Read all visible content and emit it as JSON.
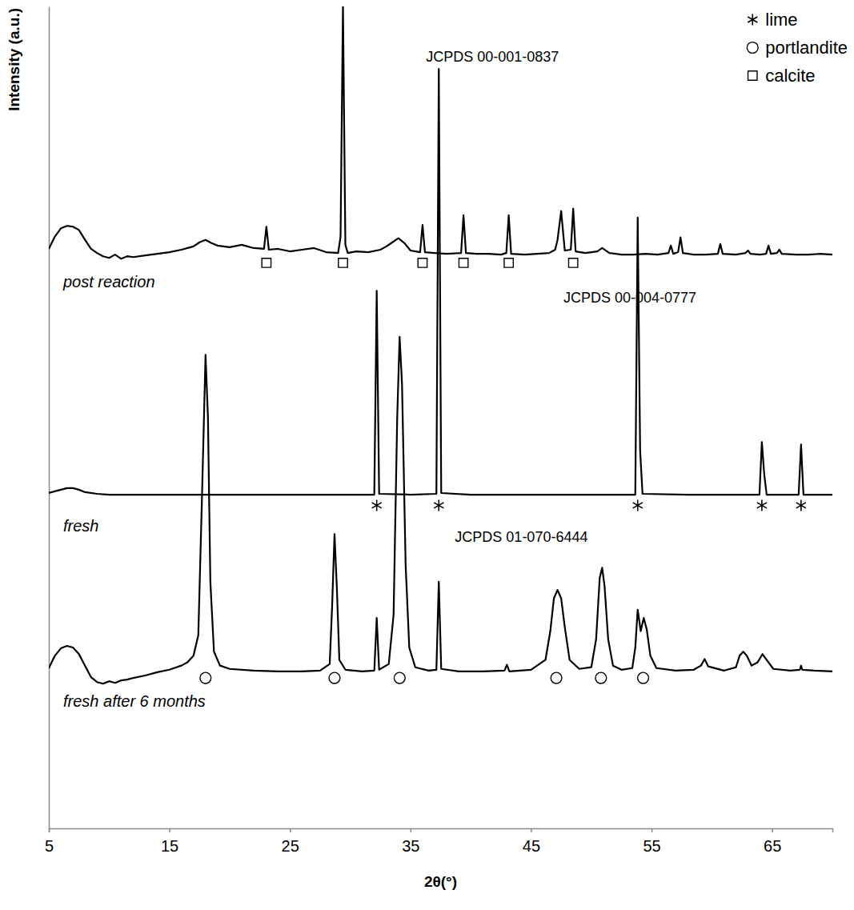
{
  "chart_data": {
    "type": "line",
    "x_label": "2θ(°)",
    "y_label": "Intensity (a.u.)",
    "xlim": [
      5,
      70
    ],
    "xticks": [
      5,
      15,
      25,
      35,
      45,
      55,
      65
    ],
    "ylim": [
      0,
      100
    ],
    "yticks": [],
    "tick_labels": "x",
    "grid": false,
    "legend": "upper right",
    "series": [
      {
        "name": "post reaction",
        "color": "#000000",
        "line_style": "solid",
        "x": [
          5.0,
          5.5,
          6.0,
          6.5,
          7.0,
          7.5,
          8.0,
          8.5,
          9.0,
          9.5,
          10.0,
          10.5,
          11.0,
          11.5,
          12.0,
          13.0,
          14.0,
          15.0,
          16.0,
          17.0,
          17.5,
          18.0,
          18.5,
          19.0,
          20.0,
          21.0,
          22.0,
          22.85,
          23.05,
          23.25,
          24.0,
          25.0,
          26.0,
          27.0,
          28.0,
          29.0,
          29.2,
          29.4,
          29.6,
          29.8,
          30.5,
          31.5,
          32.5,
          33.0,
          33.5,
          34.0,
          34.5,
          35.0,
          35.8,
          36.0,
          36.2,
          37.0,
          38.0,
          39.2,
          39.4,
          39.6,
          40.5,
          41.5,
          42.5,
          42.95,
          43.15,
          43.35,
          44.5,
          45.5,
          46.5,
          47.0,
          47.2,
          47.5,
          47.8,
          48.3,
          48.5,
          48.7,
          49.5,
          50.5,
          50.9,
          51.5,
          52.5,
          53.5,
          54.5,
          55.5,
          56.4,
          56.6,
          56.8,
          57.2,
          57.4,
          57.6,
          58.5,
          59.5,
          60.5,
          60.7,
          60.9,
          62.0,
          62.8,
          63.0,
          63.2,
          64.0,
          64.5,
          64.7,
          64.9,
          65.4,
          65.6,
          65.8,
          67.0,
          68.0,
          69.0,
          70.0
        ],
        "values": [
          70.5,
          72.0,
          73.0,
          73.3,
          73.2,
          72.8,
          71.6,
          70.5,
          70.0,
          69.6,
          69.4,
          69.8,
          69.3,
          69.6,
          69.5,
          69.7,
          69.9,
          70.1,
          70.4,
          70.8,
          71.3,
          71.6,
          71.2,
          70.9,
          70.7,
          71.0,
          70.6,
          70.5,
          73.2,
          70.4,
          70.5,
          70.2,
          70.4,
          70.6,
          70.1,
          70.0,
          72.0,
          100,
          71.0,
          70.0,
          70.2,
          70.1,
          70.4,
          70.8,
          71.3,
          71.8,
          71.2,
          70.3,
          70.1,
          73.4,
          70.1,
          70.0,
          69.9,
          70.0,
          74.6,
          70.0,
          69.9,
          69.9,
          69.8,
          70.0,
          74.6,
          69.9,
          69.8,
          69.9,
          70.0,
          70.4,
          71.6,
          75.1,
          70.3,
          70.4,
          75.4,
          70.2,
          70.0,
          70.2,
          70.6,
          70.0,
          69.8,
          69.8,
          69.9,
          69.8,
          70.0,
          70.9,
          69.9,
          70.1,
          71.9,
          70.0,
          69.8,
          69.8,
          69.9,
          71.1,
          69.9,
          69.8,
          70.0,
          70.3,
          69.9,
          69.8,
          69.9,
          70.9,
          69.9,
          70.0,
          70.4,
          69.9,
          69.8,
          69.8,
          69.9,
          69.8
        ]
      },
      {
        "name": "fresh",
        "color": "#000000",
        "line_style": "solid",
        "x": [
          5.0,
          5.5,
          6.0,
          6.5,
          7.0,
          7.5,
          8.0,
          9.0,
          10.0,
          12.0,
          15.0,
          18.0,
          21.0,
          24.0,
          27.0,
          30.0,
          32.0,
          32.2,
          32.4,
          35.0,
          37.15,
          37.35,
          37.55,
          40.0,
          45.0,
          50.0,
          53.65,
          53.85,
          54.05,
          54.25,
          58.0,
          62.0,
          63.95,
          64.15,
          64.35,
          64.55,
          67.2,
          67.4,
          67.6,
          70.0
        ],
        "values": [
          40.8,
          41.0,
          41.2,
          41.4,
          41.4,
          41.2,
          40.9,
          40.7,
          40.6,
          40.6,
          40.6,
          40.6,
          40.6,
          40.6,
          40.6,
          40.6,
          40.6,
          65.4,
          40.7,
          40.6,
          40.7,
          92.4,
          40.8,
          40.6,
          40.6,
          40.6,
          40.6,
          74.3,
          46.0,
          40.7,
          40.6,
          40.6,
          40.6,
          47.0,
          43.0,
          40.6,
          40.6,
          46.7,
          40.6,
          40.6
        ]
      },
      {
        "name": "fresh after 6 months",
        "color": "#000000",
        "line_style": "solid",
        "x": [
          5.0,
          5.5,
          6.0,
          6.5,
          7.0,
          7.5,
          8.0,
          8.5,
          9.0,
          9.5,
          10.0,
          10.5,
          11.0,
          11.5,
          12.0,
          13.0,
          14.0,
          15.0,
          16.0,
          16.5,
          17.0,
          17.4,
          17.7,
          18.0,
          18.2,
          18.4,
          18.7,
          19.2,
          20.0,
          22.0,
          24.0,
          26.0,
          27.5,
          28.3,
          28.5,
          28.7,
          28.9,
          29.1,
          29.6,
          31.0,
          32.0,
          32.2,
          32.4,
          33.2,
          33.6,
          33.9,
          34.1,
          34.3,
          34.6,
          34.9,
          35.4,
          36.5,
          37.15,
          37.35,
          37.55,
          39.0,
          41.0,
          42.8,
          43.0,
          43.2,
          45.0,
          46.2,
          46.6,
          46.9,
          47.2,
          47.5,
          47.8,
          48.2,
          49.0,
          50.0,
          50.4,
          50.7,
          50.9,
          51.1,
          51.4,
          51.8,
          52.5,
          53.4,
          53.65,
          53.85,
          54.1,
          54.35,
          54.6,
          54.9,
          55.4,
          57.0,
          58.5,
          59.1,
          59.4,
          59.7,
          61.0,
          62.0,
          62.3,
          62.6,
          62.9,
          63.3,
          63.8,
          64.2,
          64.6,
          65.1,
          66.5,
          67.3,
          67.4,
          67.5,
          68.5,
          70.0
        ],
        "values": [
          19.5,
          21.0,
          21.9,
          22.2,
          22.0,
          21.2,
          19.8,
          18.4,
          17.8,
          17.6,
          17.9,
          17.7,
          18.0,
          18.1,
          18.3,
          18.6,
          19.0,
          19.3,
          19.8,
          20.2,
          21.0,
          23.5,
          40.0,
          57.6,
          50.0,
          30.0,
          21.5,
          19.8,
          19.4,
          19.2,
          19.1,
          19.1,
          19.2,
          20.0,
          27.0,
          35.8,
          29.0,
          20.5,
          19.3,
          19.1,
          19.2,
          25.6,
          19.3,
          20.0,
          26.0,
          50.0,
          59.8,
          54.0,
          32.0,
          22.0,
          19.6,
          19.2,
          19.3,
          30.0,
          19.4,
          19.1,
          19.1,
          19.2,
          19.9,
          19.1,
          19.3,
          20.5,
          24.0,
          28.0,
          29.0,
          28.0,
          24.5,
          20.5,
          19.4,
          19.6,
          23.0,
          30.5,
          31.7,
          29.5,
          23.0,
          19.8,
          19.3,
          19.5,
          22.0,
          26.6,
          24.0,
          25.6,
          24.2,
          21.0,
          19.5,
          19.2,
          19.3,
          19.8,
          20.6,
          19.7,
          19.2,
          19.6,
          21.0,
          21.5,
          21.0,
          19.8,
          20.2,
          21.2,
          20.4,
          19.4,
          19.2,
          19.3,
          19.8,
          19.3,
          19.2,
          19.1
        ]
      }
    ],
    "phases": [
      {
        "name": "lime",
        "marker": "asterisk",
        "x": [
          32.2,
          37.35,
          53.85,
          64.15,
          67.4
        ],
        "y": 39.3
      },
      {
        "name": "portlandite",
        "marker": "circle",
        "x": [
          18.0,
          28.7,
          34.1,
          47.1,
          50.8,
          54.3
        ],
        "y": 18.3
      },
      {
        "name": "calcite",
        "marker": "square",
        "x": [
          23.05,
          29.4,
          36.0,
          39.4,
          43.15,
          48.5
        ],
        "y": 68.8
      }
    ],
    "annotations": [
      {
        "text": "JCPDS 00-001-0837",
        "x": 41.8,
        "y": 93.7
      },
      {
        "text": "JCPDS 00-004-0777",
        "x": 53.2,
        "y": 64.4
      },
      {
        "text": "JCPDS 01-070-6444",
        "x": 44.2,
        "y": 35.3
      }
    ]
  }
}
